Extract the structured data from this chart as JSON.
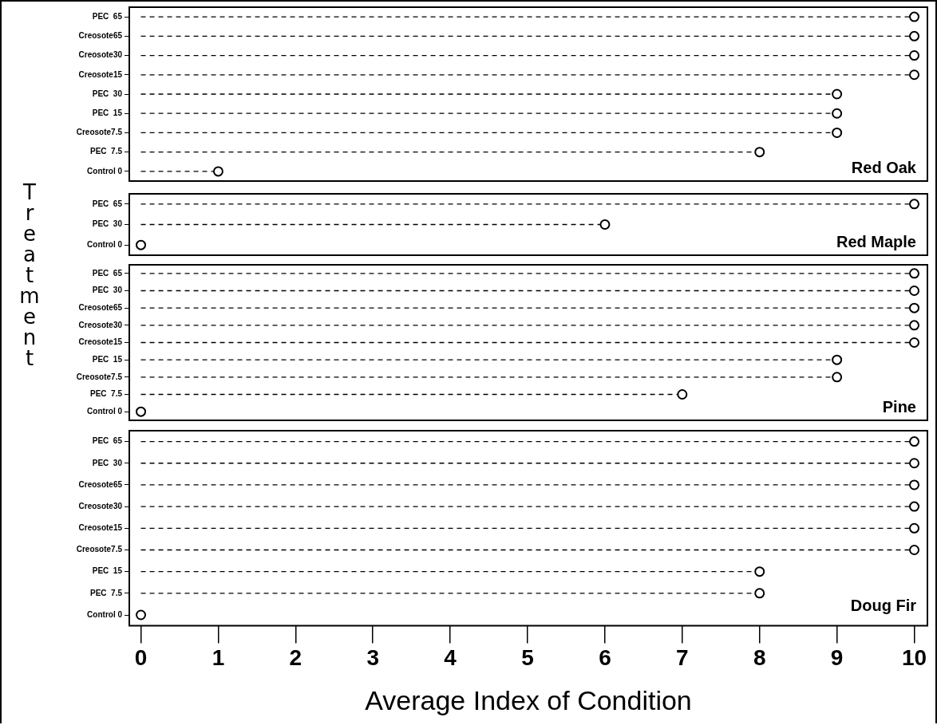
{
  "chart_data": [
    {
      "type": "lollipop",
      "orientation": "horizontal",
      "title": "Red Oak",
      "ylabel": "Treatment",
      "categories": [
        "PEC  65",
        "Creosote65",
        "Creosote30",
        "Creosote15",
        "PEC  30",
        "PEC  15",
        "Creosote7.5",
        "PEC  7.5",
        "Control 0"
      ],
      "values": [
        10,
        10,
        10,
        10,
        9,
        9,
        9,
        8,
        1
      ],
      "color": "#000000",
      "xlim": [
        -0.15,
        10.17
      ],
      "xticks": [
        0,
        1,
        2,
        3,
        4,
        5,
        6,
        7,
        8,
        9,
        10
      ],
      "tick_labels": "y",
      "marker": "circle",
      "line_style": "dashed",
      "grid": false,
      "legend": false
    },
    {
      "type": "lollipop",
      "orientation": "horizontal",
      "title": "Red Maple",
      "categories": [
        "PEC  65",
        "PEC  30",
        "Control 0"
      ],
      "values": [
        10,
        6,
        0
      ],
      "color": "#000000",
      "xlim": [
        -0.15,
        10.17
      ],
      "xticks": [
        0,
        1,
        2,
        3,
        4,
        5,
        6,
        7,
        8,
        9,
        10
      ],
      "tick_labels": "y",
      "marker": "circle",
      "line_style": "dashed",
      "grid": false,
      "legend": false
    },
    {
      "type": "lollipop",
      "orientation": "horizontal",
      "title": "Pine",
      "categories": [
        "PEC  65",
        "PEC  30",
        "Creosote65",
        "Creosote30",
        "Creosote15",
        "PEC  15",
        "Creosote7.5",
        "PEC  7.5",
        "Control 0"
      ],
      "values": [
        10,
        10,
        10,
        10,
        10,
        9,
        9,
        7,
        0
      ],
      "color": "#000000",
      "xlim": [
        -0.15,
        10.17
      ],
      "xticks": [
        0,
        1,
        2,
        3,
        4,
        5,
        6,
        7,
        8,
        9,
        10
      ],
      "tick_labels": "y",
      "marker": "circle",
      "line_style": "dashed",
      "grid": false,
      "legend": false
    },
    {
      "type": "lollipop",
      "orientation": "horizontal",
      "title": "Doug Fir",
      "xlabel": "Average Index of Condition",
      "categories": [
        "PEC  65",
        "PEC  30",
        "Creosote65",
        "Creosote30",
        "Creosote15",
        "Creosote7.5",
        "PEC  15",
        "PEC  7.5",
        "Control 0"
      ],
      "values": [
        10,
        10,
        10,
        10,
        10,
        10,
        8,
        8,
        0
      ],
      "color": "#000000",
      "xlim": [
        -0.15,
        10.17
      ],
      "xticks": [
        0,
        1,
        2,
        3,
        4,
        5,
        6,
        7,
        8,
        9,
        10
      ],
      "marker": "circle",
      "line_style": "dashed",
      "grid": false,
      "legend": false
    }
  ]
}
